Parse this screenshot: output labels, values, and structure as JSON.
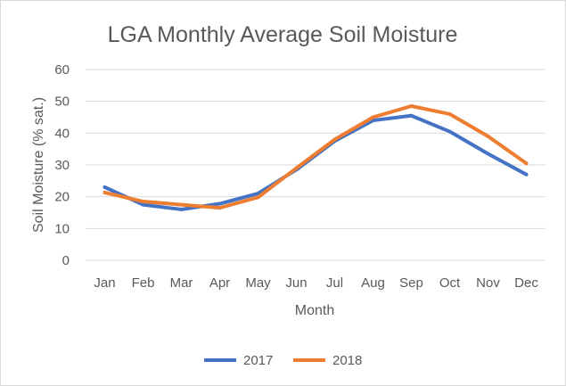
{
  "chart_data": {
    "type": "line",
    "title": "LGA Monthly Average Soil Moisture",
    "xlabel": "Month",
    "ylabel": "Soil Moisture (% sat.)",
    "ylim": [
      0,
      60
    ],
    "yticks": [
      0,
      10,
      20,
      30,
      40,
      50,
      60
    ],
    "grid": true,
    "legend_position": "bottom",
    "categories": [
      "Jan",
      "Feb",
      "Mar",
      "Apr",
      "May",
      "Jun",
      "Jul",
      "Aug",
      "Sep",
      "Oct",
      "Nov",
      "Dec"
    ],
    "series": [
      {
        "name": "2017",
        "color": "#4472c4",
        "values": [
          23,
          17.5,
          16,
          17.8,
          21,
          28.5,
          37.5,
          44,
          45.5,
          40.5,
          33.5,
          27
        ]
      },
      {
        "name": "2018",
        "color": "#ed7d31",
        "values": [
          21.3,
          18.5,
          17.5,
          16.5,
          19.8,
          29,
          38,
          45,
          48.5,
          46,
          39,
          30.5
        ]
      }
    ]
  }
}
